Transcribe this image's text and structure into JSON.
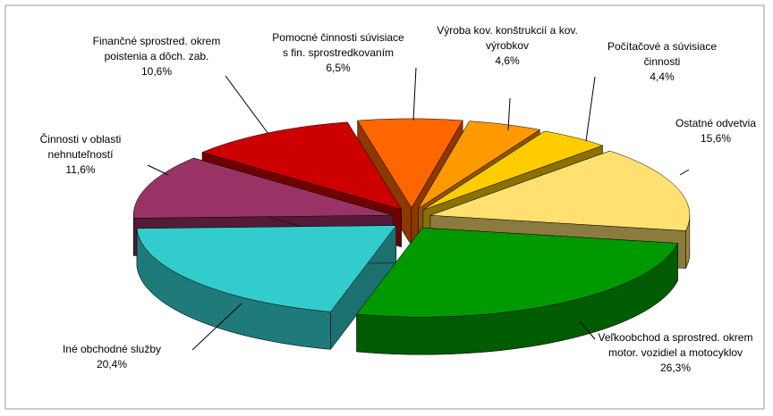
{
  "chart_data": {
    "type": "pie",
    "categories": [
      "Pomocné činnosti súvisiace s fin. sprostredkovaním",
      "Výroba kov. konštrukcií a kov. výrobkov",
      "Počítačové a súvisiace činnosti",
      "Ostatné odvetvia",
      "Veľkoobchod a sprostred. okrem motor. vozidiel a motocyklov",
      "Iné obchodné služby",
      "Činnosti v oblasti nehnuteľností",
      "Finančné sprostred. okrem poistenia a dôch. zab."
    ],
    "values": [
      6.5,
      4.6,
      4.4,
      15.6,
      26.3,
      20.4,
      11.6,
      10.6
    ],
    "value_labels": [
      "6,5%",
      "4,6%",
      "4,4%",
      "15,6%",
      "26,3%",
      "20,4%",
      "11,6%",
      "10,6%"
    ],
    "colors": [
      "#ff6600",
      "#ff9900",
      "#ffcc00",
      "#ffe070",
      "#009900",
      "#33cccc",
      "#993366",
      "#cc0000"
    ]
  }
}
